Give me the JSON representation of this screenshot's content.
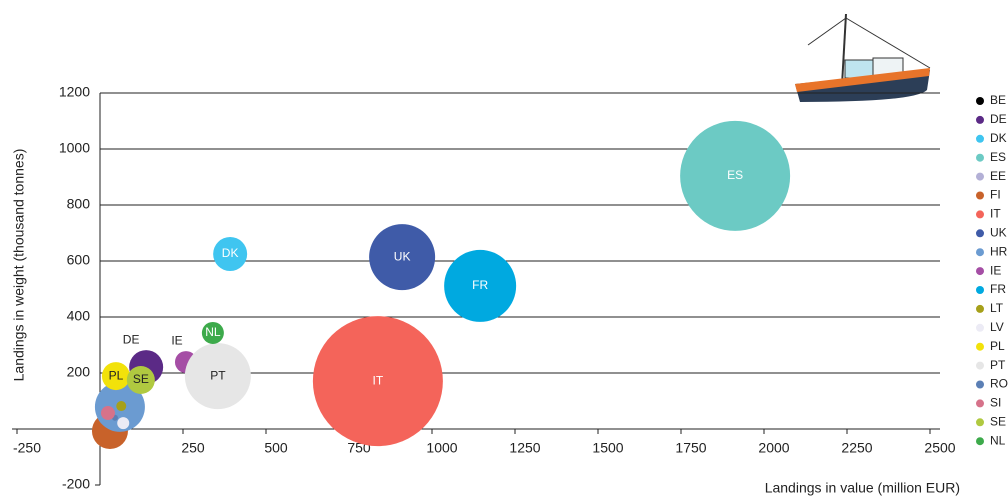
{
  "chart_data": {
    "type": "bubble",
    "x_label": "Landings in value (million EUR)",
    "y_label": "Landings in weight (thousand tonnes)",
    "xlim": [
      -250,
      2500
    ],
    "xticks": [
      -250,
      250,
      500,
      750,
      1000,
      1250,
      1500,
      1750,
      2000,
      2250,
      2500
    ],
    "ylim": [
      -200,
      1200
    ],
    "yticks": [
      -200,
      200,
      400,
      600,
      800,
      1000,
      1200
    ],
    "grid": true,
    "legend": "right",
    "series": [
      {
        "name": "BE",
        "color": "#000000",
        "x": [
          5
        ],
        "values": [
          0
        ],
        "sizes": [
          2
        ]
      },
      {
        "name": "DE",
        "color": "#5b2a86",
        "x": [
          139
        ],
        "values": [
          221
        ],
        "sizes": [
          17
        ],
        "label": "above"
      },
      {
        "name": "DK",
        "color": "#3fc5f0",
        "x": [
          392
        ],
        "values": [
          625
        ],
        "sizes": [
          17
        ],
        "label": "center"
      },
      {
        "name": "ES",
        "color": "#6ccac4",
        "x": [
          1913
        ],
        "values": [
          904
        ],
        "sizes": [
          55
        ],
        "label": "center"
      },
      {
        "name": "EE",
        "color": "#b3b0d6",
        "x": [
          40
        ],
        "values": [
          30
        ],
        "sizes": [
          5
        ]
      },
      {
        "name": "FI",
        "color": "#c8622a",
        "x": [
          30
        ],
        "values": [
          -7
        ],
        "sizes": [
          18
        ]
      },
      {
        "name": "IT",
        "color": "#f4645a",
        "x": [
          837
        ],
        "values": [
          171
        ],
        "sizes": [
          65
        ],
        "label": "center"
      },
      {
        "name": "UK",
        "color": "#3f5ba8",
        "x": [
          910
        ],
        "values": [
          614
        ],
        "sizes": [
          33
        ],
        "label": "center"
      },
      {
        "name": "HR",
        "color": "#6b9bd1",
        "x": [
          60
        ],
        "values": [
          79
        ],
        "sizes": [
          25
        ]
      },
      {
        "name": "IE",
        "color": "#a54ea5",
        "x": [
          259
        ],
        "values": [
          239
        ],
        "sizes": [
          11
        ],
        "label": "above"
      },
      {
        "name": "FR",
        "color": "#00a9e0",
        "x": [
          1145
        ],
        "values": [
          511
        ],
        "sizes": [
          36
        ],
        "label": "center"
      },
      {
        "name": "LT",
        "color": "#a6a01a",
        "x": [
          64
        ],
        "values": [
          82
        ],
        "sizes": [
          5
        ]
      },
      {
        "name": "LV",
        "color": "#ecebf5",
        "x": [
          70
        ],
        "values": [
          21
        ],
        "sizes": [
          6
        ]
      },
      {
        "name": "PL",
        "color": "#f2e20a",
        "x": [
          48
        ],
        "values": [
          189
        ],
        "sizes": [
          14
        ],
        "label": "center"
      },
      {
        "name": "PT",
        "color": "#e6e6e6",
        "x": [
          355
        ],
        "values": [
          189
        ],
        "sizes": [
          33
        ],
        "label": "center"
      },
      {
        "name": "RO",
        "color": "#5b7fb5",
        "x": [
          45
        ],
        "values": [
          40
        ],
        "sizes": [
          3
        ]
      },
      {
        "name": "SI",
        "color": "#d6728a",
        "x": [
          24
        ],
        "values": [
          57
        ],
        "sizes": [
          7
        ]
      },
      {
        "name": "SE",
        "color": "#b0c940",
        "x": [
          123
        ],
        "values": [
          175
        ],
        "sizes": [
          14
        ],
        "label": "center"
      },
      {
        "name": "NL",
        "color": "#3daa4b",
        "x": [
          340
        ],
        "values": [
          343
        ],
        "sizes": [
          11
        ],
        "label": "center"
      }
    ]
  }
}
